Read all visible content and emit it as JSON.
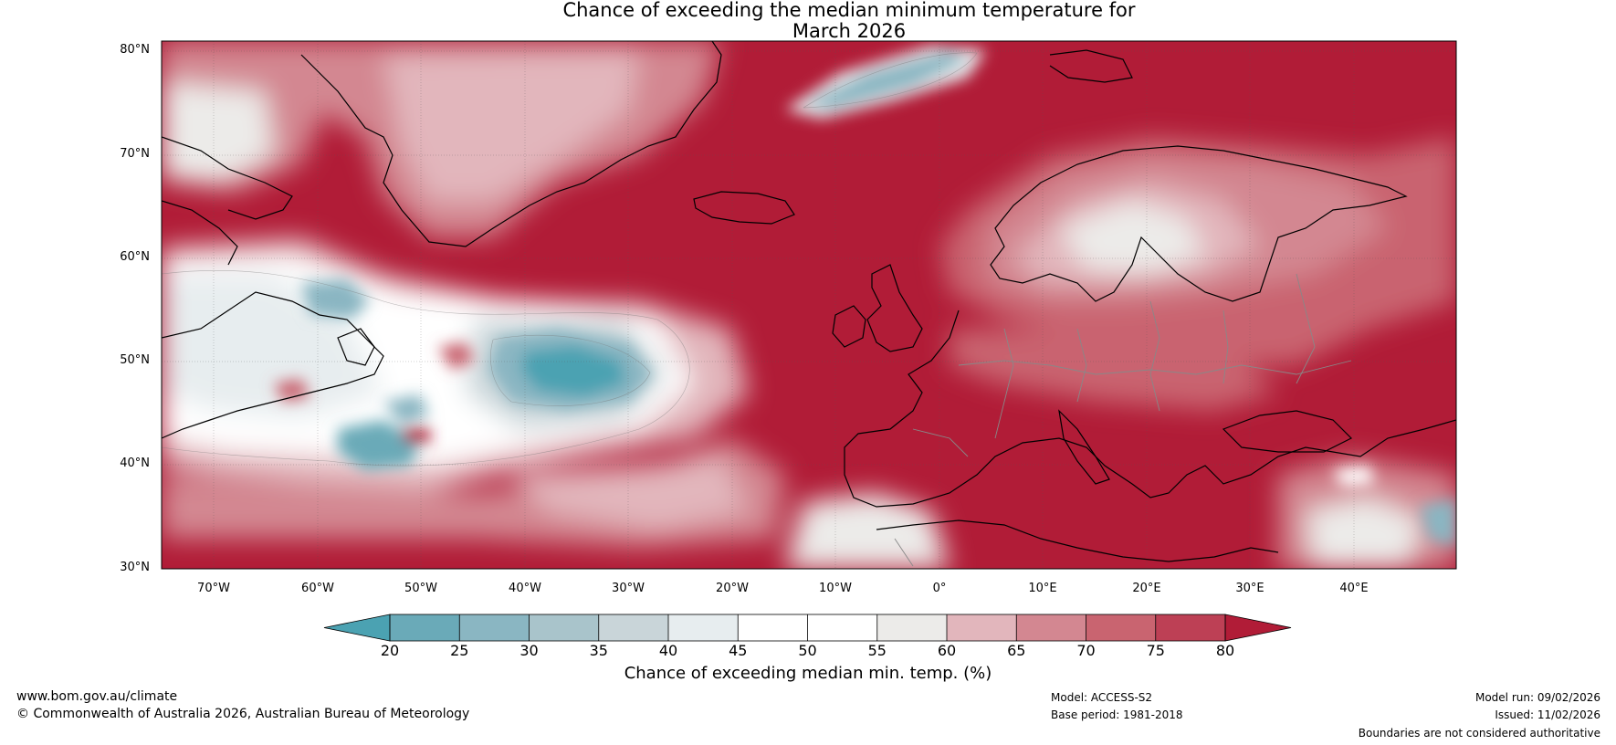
{
  "title": {
    "line1": "Chance of exceeding the median minimum temperature for",
    "line2": "March 2026"
  },
  "map": {
    "lat_labels": [
      "80°N",
      "70°N",
      "60°N",
      "50°N",
      "40°N",
      "30°N"
    ],
    "lon_labels": [
      "70°W",
      "60°W",
      "50°W",
      "40°W",
      "30°W",
      "20°W",
      "10°W",
      "0°",
      "10°E",
      "20°E",
      "30°E",
      "40°E"
    ]
  },
  "colorbar": {
    "ticks": [
      "20",
      "25",
      "30",
      "35",
      "40",
      "45",
      "50",
      "55",
      "60",
      "65",
      "70",
      "75",
      "80"
    ],
    "colors": [
      "#4ba2b2",
      "#6aaab8",
      "#8ab6c2",
      "#a9c4cb",
      "#c9d5d9",
      "#e7edef",
      "#ffffff",
      "#ffffff",
      "#ecebe9",
      "#e2b6bc",
      "#d38791",
      "#c96470",
      "#bd4055",
      "#b11c37"
    ],
    "label": "Chance of exceeding median min. temp. (%)"
  },
  "footer": {
    "website": "www.bom.gov.au/climate",
    "copyright": "© Commonwealth of Australia 2026, Australian Bureau of Meteorology",
    "model": "Model: ACCESS-S2",
    "base_period": "Base period: 1981-2018",
    "model_run": "Model run: 09/02/2026",
    "issued": "Issued: 11/02/2026",
    "disclaimer": "Boundaries are not considered authoritative"
  }
}
